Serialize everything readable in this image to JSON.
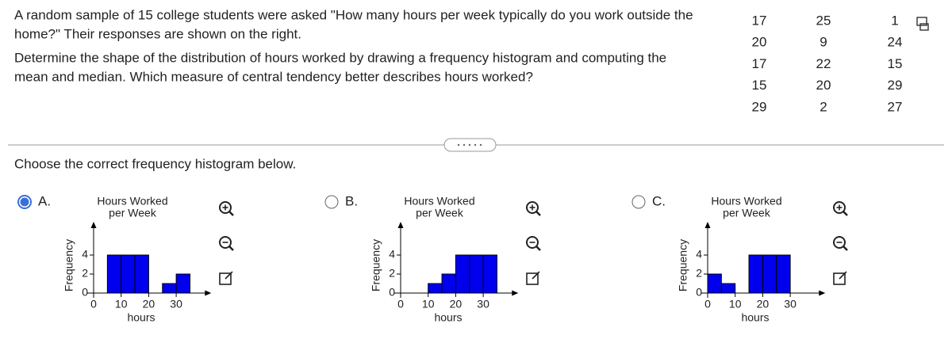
{
  "question_lines": [
    "A random sample of 15 college students were asked \"How many hours per week typically do you work outside the",
    "home?\" Their responses are shown on the right.",
    "Determine the shape of the distribution of hours worked by drawing a frequency histogram and computing the",
    "mean and median. Which measure of central tendency better describes hours worked?"
  ],
  "data_rows": [
    [
      17,
      25,
      1
    ],
    [
      20,
      9,
      24
    ],
    [
      17,
      22,
      15
    ],
    [
      15,
      20,
      29
    ],
    [
      29,
      2,
      27
    ]
  ],
  "prompt": "Choose the correct frequency histogram below.",
  "options": [
    {
      "label": "A.",
      "selected": true
    },
    {
      "label": "B.",
      "selected": false
    },
    {
      "label": "C.",
      "selected": false
    }
  ],
  "chart_data": [
    {
      "type": "histogram",
      "title": [
        "Hours Worked",
        "per Week"
      ],
      "xlabel": "hours",
      "ylabel": "Frequency",
      "color": "#0000ee",
      "bins": [
        5,
        10,
        15,
        20,
        25,
        30,
        35
      ],
      "counts": [
        4,
        4,
        4,
        0,
        1,
        2
      ],
      "xlim": [
        0,
        41
      ],
      "ylim": [
        0,
        7
      ],
      "xticks": [
        0,
        10,
        20,
        30
      ],
      "yticks": [
        0,
        2,
        4
      ]
    },
    {
      "type": "histogram",
      "title": [
        "Hours Worked",
        "per Week"
      ],
      "xlabel": "hours",
      "ylabel": "Frequency",
      "color": "#0000ee",
      "bins": [
        10,
        15,
        20,
        25,
        30,
        35
      ],
      "counts": [
        1,
        2,
        4,
        4,
        4
      ],
      "xlim": [
        0,
        41
      ],
      "ylim": [
        0,
        7
      ],
      "xticks": [
        0,
        10,
        20,
        30
      ],
      "yticks": [
        0,
        2,
        4
      ]
    },
    {
      "type": "histogram",
      "title": [
        "Hours Worked",
        "per Week"
      ],
      "xlabel": "hours",
      "ylabel": "Frequency",
      "color": "#0000ee",
      "bins": [
        0,
        5,
        10,
        15,
        20,
        25,
        30
      ],
      "counts": [
        2,
        1,
        0,
        4,
        4,
        4
      ],
      "xlim": [
        0,
        41
      ],
      "ylim": [
        0,
        7
      ],
      "xticks": [
        0,
        10,
        20,
        30
      ],
      "yticks": [
        0,
        2,
        4
      ]
    }
  ]
}
